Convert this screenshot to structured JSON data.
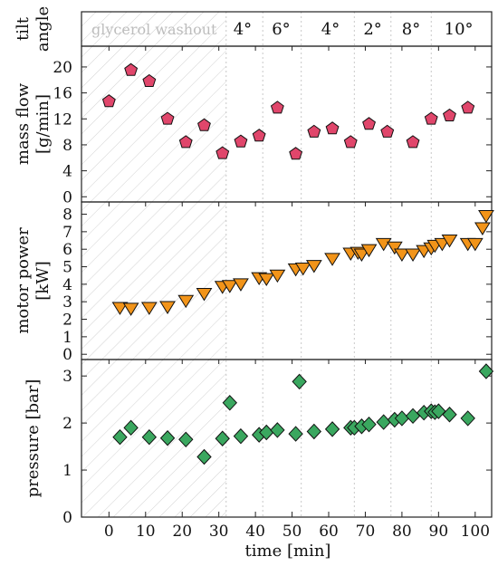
{
  "chart_data": [
    {
      "type": "table",
      "ylabel": "tilt angle",
      "washout_label": "glycerol washout",
      "angles": [
        {
          "label": "4°",
          "x": 36.5
        },
        {
          "label": "6°",
          "x": 47
        },
        {
          "label": "4°",
          "x": 60.5
        },
        {
          "label": "2°",
          "x": 72
        },
        {
          "label": "8°",
          "x": 82.5
        },
        {
          "label": "10°",
          "x": 95.5
        }
      ],
      "dividers_x": [
        42,
        52.5,
        67,
        77,
        88
      ]
    },
    {
      "type": "scatter",
      "ylabel_lines": [
        "mass flow",
        "[g/min]"
      ],
      "ylim": [
        -0.8,
        23.2
      ],
      "yticks": [
        0,
        4,
        8,
        12,
        16,
        20
      ],
      "marker": "pentagon",
      "color": "#e0466b",
      "points": [
        [
          0,
          14.7
        ],
        [
          6,
          19.5
        ],
        [
          11,
          17.8
        ],
        [
          16,
          12
        ],
        [
          21,
          8.4
        ],
        [
          26,
          11
        ],
        [
          31,
          6.7
        ],
        [
          36,
          8.5
        ],
        [
          41,
          9.4
        ],
        [
          46,
          13.7
        ],
        [
          51,
          6.6
        ],
        [
          56,
          10
        ],
        [
          61,
          10.5
        ],
        [
          66,
          8.4
        ],
        [
          71,
          11.2
        ],
        [
          76,
          10
        ],
        [
          83,
          8.4
        ],
        [
          88,
          12
        ],
        [
          93,
          12.5
        ],
        [
          98,
          13.7
        ]
      ]
    },
    {
      "type": "scatter",
      "ylabel_lines": [
        "motor power",
        "[kW]"
      ],
      "ylim": [
        -0.3,
        8.7
      ],
      "yticks": [
        0,
        1,
        2,
        3,
        4,
        5,
        6,
        7,
        8
      ],
      "marker": "triangle-down",
      "color": "#f29419",
      "points": [
        [
          3,
          2.65
        ],
        [
          6,
          2.6
        ],
        [
          11,
          2.65
        ],
        [
          16,
          2.7
        ],
        [
          21,
          3.05
        ],
        [
          26,
          3.45
        ],
        [
          31,
          3.85
        ],
        [
          33,
          3.9
        ],
        [
          36,
          4
        ],
        [
          41,
          4.35
        ],
        [
          43,
          4.3
        ],
        [
          46,
          4.5
        ],
        [
          51,
          4.85
        ],
        [
          53,
          4.9
        ],
        [
          56,
          5.05
        ],
        [
          61,
          5.45
        ],
        [
          66,
          5.75
        ],
        [
          68,
          5.8
        ],
        [
          69,
          5.7
        ],
        [
          71,
          5.95
        ],
        [
          75,
          6.3
        ],
        [
          78,
          6.1
        ],
        [
          80,
          5.7
        ],
        [
          83,
          5.7
        ],
        [
          86,
          5.9
        ],
        [
          88,
          6.05
        ],
        [
          89,
          6.2
        ],
        [
          91,
          6.3
        ],
        [
          93,
          6.5
        ],
        [
          98,
          6.3
        ],
        [
          100,
          6.3
        ],
        [
          102,
          7.2
        ],
        [
          103,
          7.9
        ]
      ]
    },
    {
      "type": "scatter",
      "ylabel_lines": [
        "pressure [bar]"
      ],
      "ylim": [
        0,
        3.35
      ],
      "yticks": [
        0,
        1,
        2,
        3
      ],
      "marker": "diamond",
      "color": "#3aa75f",
      "points": [
        [
          3,
          1.7
        ],
        [
          6,
          1.9
        ],
        [
          11,
          1.7
        ],
        [
          16,
          1.68
        ],
        [
          21,
          1.65
        ],
        [
          26,
          1.28
        ],
        [
          31,
          1.67
        ],
        [
          33,
          2.43
        ],
        [
          36,
          1.72
        ],
        [
          41,
          1.75
        ],
        [
          43,
          1.8
        ],
        [
          46,
          1.85
        ],
        [
          51,
          1.77
        ],
        [
          52,
          2.88
        ],
        [
          56,
          1.82
        ],
        [
          61,
          1.87
        ],
        [
          66,
          1.9
        ],
        [
          67,
          1.9
        ],
        [
          69,
          1.93
        ],
        [
          71,
          1.97
        ],
        [
          75,
          2.02
        ],
        [
          78,
          2.07
        ],
        [
          80,
          2.1
        ],
        [
          83,
          2.15
        ],
        [
          86,
          2.22
        ],
        [
          88,
          2.25
        ],
        [
          89,
          2.23
        ],
        [
          90,
          2.25
        ],
        [
          93,
          2.18
        ],
        [
          98,
          2.1
        ],
        [
          103,
          3.1
        ]
      ]
    },
    {
      "type": "axis",
      "xlabel": "time [min]",
      "xlim": [
        -7.5,
        104.5
      ],
      "xticks": [
        0,
        10,
        20,
        30,
        40,
        50,
        60,
        70,
        80,
        90,
        100
      ],
      "washout_end": 32
    }
  ]
}
